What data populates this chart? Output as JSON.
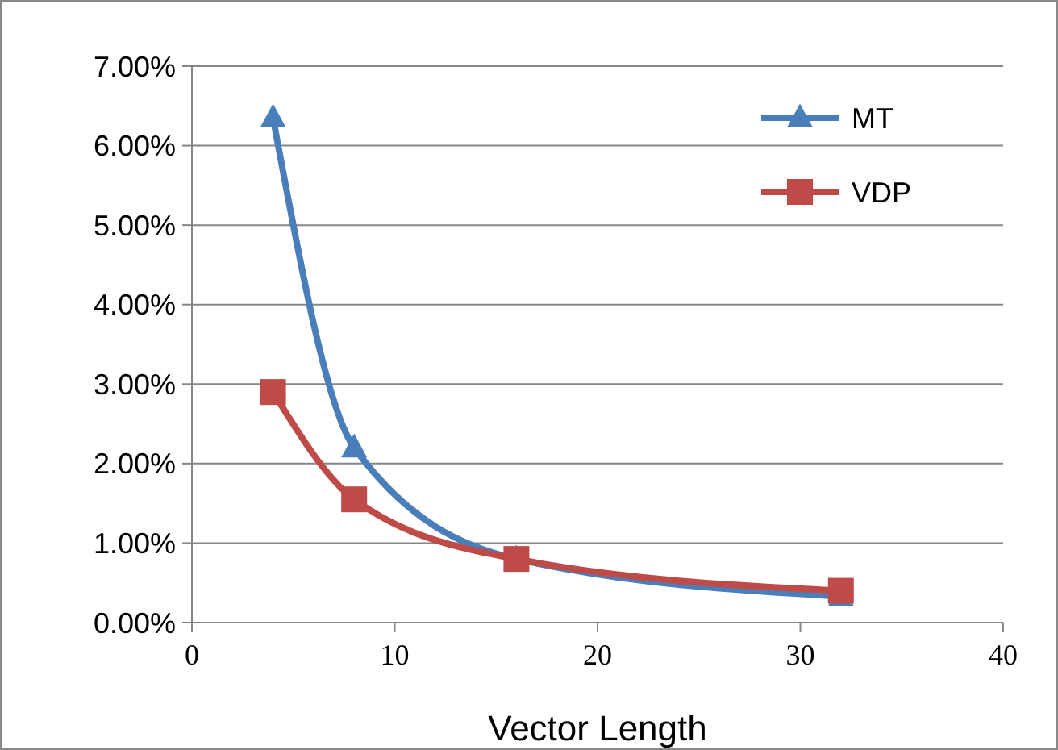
{
  "chart_data": {
    "type": "line",
    "xlabel": "Vector Length",
    "x": [
      4,
      8,
      16,
      32
    ],
    "series": [
      {
        "name": "MT",
        "color": "#4a7ebb",
        "values": [
          6.35,
          2.2,
          0.8,
          0.33
        ],
        "marker": "triangle"
      },
      {
        "name": "VDP",
        "color": "#be4b48",
        "values": [
          2.9,
          1.55,
          0.8,
          0.4
        ],
        "marker": "square"
      }
    ],
    "xlim": [
      0,
      40
    ],
    "xticks": [
      0,
      10,
      20,
      30,
      40
    ],
    "ylim": [
      0,
      7
    ],
    "yticks": [
      {
        "value": 0,
        "label": "0.00%"
      },
      {
        "value": 1,
        "label": "1.00%"
      },
      {
        "value": 2,
        "label": "2.00%"
      },
      {
        "value": 3,
        "label": "3.00%"
      },
      {
        "value": 4,
        "label": "4.00%"
      },
      {
        "value": 5,
        "label": "5.00%"
      },
      {
        "value": 6,
        "label": "6.00%"
      },
      {
        "value": 7,
        "label": "7.00%"
      }
    ],
    "grid": "y",
    "legend": "top right",
    "line_style": "solid"
  }
}
